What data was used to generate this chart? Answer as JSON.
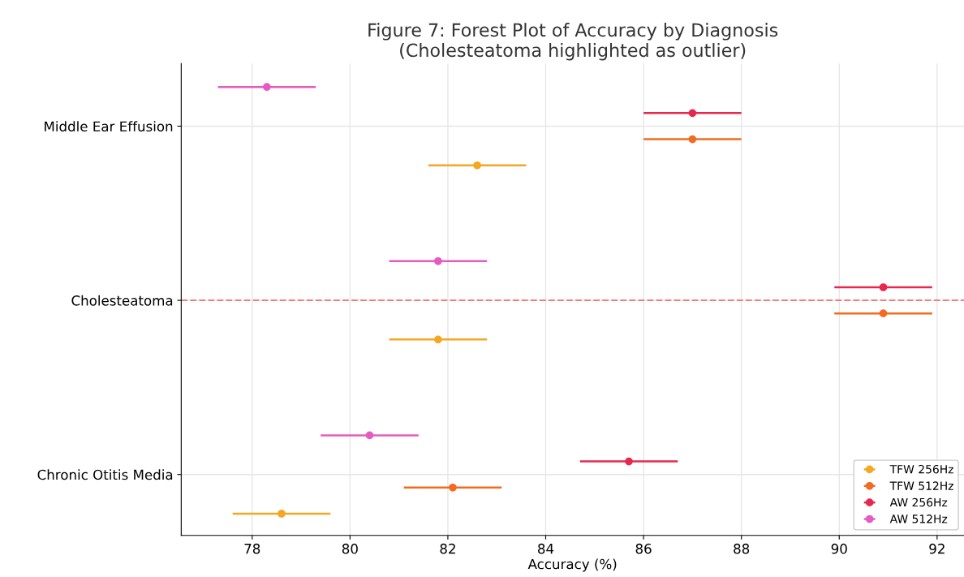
{
  "chart_data": {
    "type": "scatter",
    "orientation": "horizontal",
    "title": "Figure 7: Forest Plot of Accuracy by Diagnosis\n(Cholesteatoma highlighted as outlier)",
    "xlabel": "Accuracy (%)",
    "categories": [
      "Middle Ear Effusion",
      "Cholesteatoma",
      "Chronic Otitis Media"
    ],
    "series": [
      {
        "name": "TFW 256Hz",
        "color": "#f5a623",
        "values": [
          82.6,
          81.8,
          78.6
        ],
        "errors": [
          1.0,
          1.0,
          1.0
        ]
      },
      {
        "name": "TFW 512Hz",
        "color": "#f26b21",
        "values": [
          87.0,
          90.9,
          82.1
        ],
        "errors": [
          1.0,
          1.0,
          1.0
        ]
      },
      {
        "name": "AW 256Hz",
        "color": "#e6284f",
        "values": [
          87.0,
          90.9,
          85.7
        ],
        "errors": [
          1.0,
          1.0,
          1.0
        ]
      },
      {
        "name": "AW 512Hz",
        "color": "#e65bbf",
        "values": [
          78.3,
          81.8,
          80.4
        ],
        "errors": [
          1.0,
          1.0,
          1.0
        ]
      }
    ],
    "xlim": [
      76.55,
      92.55
    ],
    "xticks": [
      78,
      80,
      82,
      84,
      86,
      88,
      90,
      92
    ],
    "ref_lines": [
      {
        "axis": "y",
        "value": "Cholesteatoma",
        "color": "#f08080",
        "line_style": "dashed"
      }
    ],
    "grid": true,
    "legend": "bottom right",
    "marker": "circle"
  }
}
